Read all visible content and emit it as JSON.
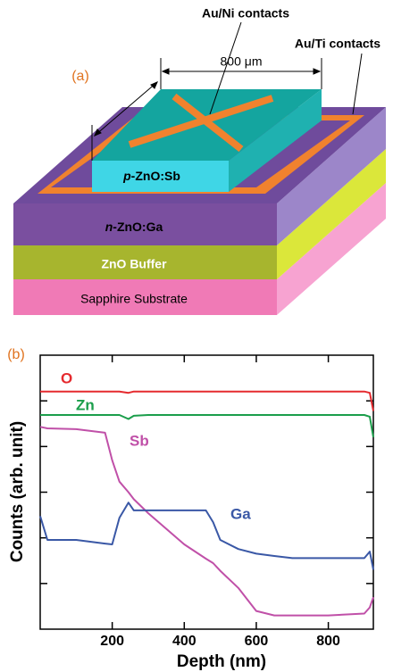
{
  "panel_a": {
    "label": "(a)",
    "au_ni": "Au/Ni contacts",
    "au_ti": "Au/Ti contacts",
    "dimension": "800 μm",
    "p_layer": {
      "prefix": "p",
      "rest": "-ZnO:Sb"
    },
    "n_layer": {
      "prefix": "n",
      "rest": "-ZnO:Ga"
    },
    "buffer": "ZnO Buffer",
    "substrate": "Sapphire Substrate"
  },
  "chart_data": {
    "type": "line",
    "panel_label": "(b)",
    "x_label": "Depth (nm)",
    "y_label": "Counts (arb. unit)",
    "log_y": true,
    "x": [
      0,
      20,
      100,
      180,
      200,
      220,
      245,
      260,
      300,
      400,
      460,
      480,
      500,
      550,
      600,
      650,
      700,
      800,
      900,
      915,
      925
    ],
    "series": [
      {
        "name": "O",
        "color": "#e52a2e",
        "values": [
          160000,
          160000,
          160000,
          160000,
          160000,
          160000,
          150000,
          160000,
          160000,
          160000,
          160000,
          160000,
          160000,
          160000,
          160000,
          160000,
          160000,
          160000,
          160000,
          150000,
          60000
        ]
      },
      {
        "name": "Zn",
        "color": "#1b9e4b",
        "values": [
          49000,
          49000,
          49000,
          49000,
          49000,
          49000,
          40000,
          47000,
          49000,
          49000,
          49000,
          49000,
          49000,
          49000,
          49000,
          49000,
          49000,
          49000,
          49000,
          45000,
          16000
        ]
      },
      {
        "name": "Sb",
        "color": "#c050a8",
        "values": [
          27000,
          25000,
          24000,
          20000,
          5000,
          1700,
          1000,
          700,
          345,
          72,
          35,
          28,
          19,
          8,
          2.5,
          2,
          2,
          2,
          2.2,
          3,
          5
        ]
      },
      {
        "name": "Ga",
        "color": "#3a58a6",
        "values": [
          300,
          90,
          90,
          75,
          72,
          275,
          590,
          400,
          400,
          400,
          400,
          220,
          90,
          57,
          45,
          40,
          36,
          36,
          36,
          50,
          20
        ]
      }
    ],
    "xlim": [
      0,
      925
    ],
    "xticks": [
      200,
      400,
      600,
      800
    ],
    "ylim": [
      1,
      1000000
    ],
    "yticks": [
      10,
      100,
      1000,
      10000,
      100000
    ]
  }
}
